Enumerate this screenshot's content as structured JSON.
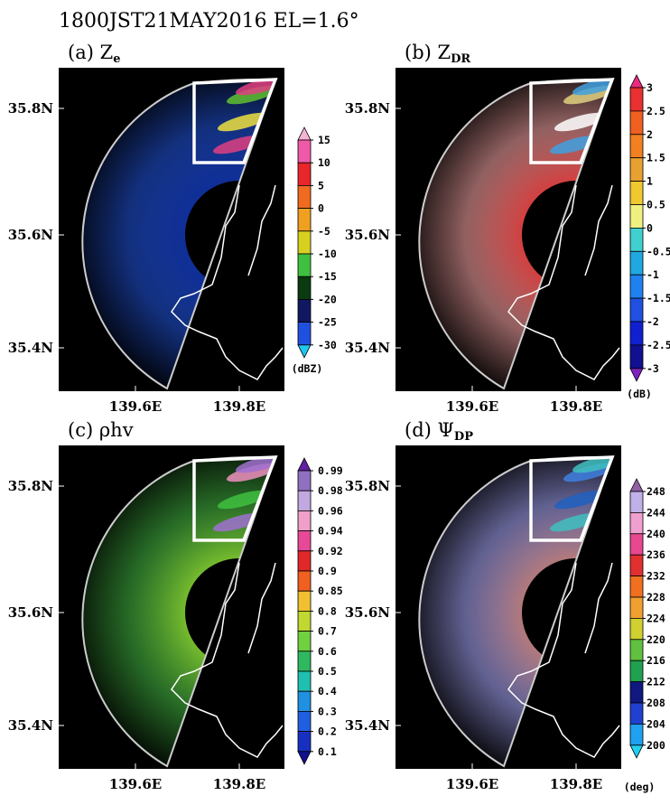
{
  "title": "1800JST21MAY2016  EL=1.6°",
  "panels": [
    {
      "label": "(a) Z",
      "subscript": "e",
      "xticks": [
        "139.6E",
        "139.8E"
      ],
      "yticks": [
        "35.8N",
        "35.6N",
        "35.4N"
      ],
      "colorbar": {
        "unit": "(dBZ)",
        "ticks": [
          15,
          10,
          5,
          0,
          -5,
          -10,
          -15,
          -20,
          -25,
          -30
        ],
        "colors": [
          "#f7b3d3",
          "#ef5aa8",
          "#e8262b",
          "#f06a20",
          "#f0a020",
          "#d8d020",
          "#40c040",
          "#0a3a10",
          "#101860",
          "#2050e0",
          "#20c8f0"
        ]
      },
      "fill": [
        "#1030a0",
        "#2050d0"
      ],
      "inset": [
        "#60c030",
        "#f0e040",
        "#e04080"
      ]
    },
    {
      "label": "(b) Z",
      "subscript": "DR",
      "xticks": [
        "139.6E",
        "139.8E"
      ],
      "yticks": [
        "35.8N",
        "35.6N",
        "35.4N"
      ],
      "colorbar": {
        "unit": "(dB)",
        "ticks": [
          3,
          2.5,
          2,
          1.5,
          1,
          0.5,
          0,
          -0.5,
          -1,
          -1.5,
          -2,
          -2.5,
          -3
        ],
        "colors": [
          "#e82a80",
          "#e83030",
          "#f06020",
          "#f08020",
          "#e8a030",
          "#f0c830",
          "#f0f080",
          "#40d0d0",
          "#20a8e0",
          "#2080f0",
          "#2050e0",
          "#1020d0",
          "#101090",
          "#8020c0"
        ]
      },
      "fill": [
        "#e04040",
        "#f0a0a0"
      ],
      "inset": [
        "#e0d080",
        "#ffffff",
        "#40a0e0"
      ]
    },
    {
      "label": "(c) ρhv",
      "xticks": [
        "139.6E",
        "139.8E"
      ],
      "yticks": [
        "35.8N",
        "35.6N",
        "35.4N"
      ],
      "colorbar": {
        "unit": "",
        "ticks": [
          0.99,
          0.98,
          0.96,
          0.94,
          0.92,
          0.9,
          0.85,
          0.8,
          0.7,
          0.6,
          0.5,
          0.4,
          0.3,
          0.2,
          0.1
        ],
        "colors": [
          "#6020a0",
          "#9070c0",
          "#c0a8e0",
          "#f0a0c8",
          "#e84898",
          "#e02828",
          "#f06020",
          "#f0c030",
          "#c0d830",
          "#70d040",
          "#30b860",
          "#20c0b0",
          "#2090e0",
          "#2060e0",
          "#1830c0",
          "#101090"
        ]
      },
      "fill": [
        "#80c830",
        "#40b040"
      ],
      "inset": [
        "#f090c0",
        "#40c040",
        "#a070d0"
      ]
    },
    {
      "label": "(d) Ψ",
      "subscript": "DP",
      "xticks": [
        "139.6E",
        "139.8E"
      ],
      "yticks": [
        "35.8N",
        "35.6N",
        "35.4N"
      ],
      "colorbar": {
        "unit": "(deg)",
        "ticks": [
          248,
          244,
          240,
          236,
          232,
          228,
          224,
          220,
          216,
          212,
          208,
          204,
          200
        ],
        "colors": [
          "#9060a0",
          "#c0b0e8",
          "#f0a0d0",
          "#e84890",
          "#e03030",
          "#f07020",
          "#f0a030",
          "#d0d030",
          "#60c040",
          "#20a050",
          "#101880",
          "#2040d0",
          "#20a0f0",
          "#20d0f0"
        ]
      },
      "fill": [
        "#c08080",
        "#a0a0f0"
      ],
      "inset": [
        "#4080e0",
        "#2060c0",
        "#40c0c0"
      ]
    }
  ]
}
